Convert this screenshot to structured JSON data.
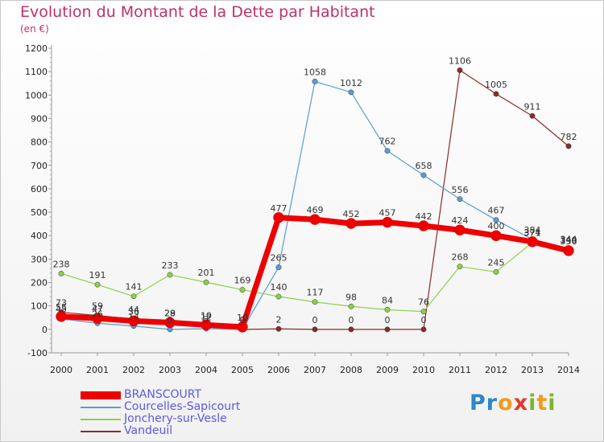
{
  "title": "Evolution du Montant de la Dette par Habitant",
  "subtitle": "(en €)",
  "brand": {
    "letters": [
      "P",
      "r",
      "o",
      "x",
      "i",
      "t",
      "i"
    ],
    "colors": [
      "#2f86c8",
      "#2f86c8",
      "#f39a1e",
      "#e13a2a",
      "#7bb52d",
      "#f39a1e",
      "#7bb52d"
    ]
  },
  "chart_data": {
    "type": "line",
    "x": [
      "2000",
      "2001",
      "2002",
      "2003",
      "2004",
      "2005",
      "2006",
      "2007",
      "2008",
      "2009",
      "2010",
      "2011",
      "2012",
      "2013",
      "2014"
    ],
    "ylim": [
      -100,
      1200
    ],
    "yticks": [
      "-100",
      "0",
      "100",
      "200",
      "300",
      "400",
      "500",
      "600",
      "700",
      "800",
      "900",
      "1000",
      "1100",
      "1200"
    ],
    "grid": false,
    "legend_position": "bottom-left",
    "series": [
      {
        "name": "BRANSCOURT",
        "color": "#ee0000",
        "values": [
          55,
          47,
          36,
          29,
          19,
          10,
          477,
          469,
          452,
          457,
          442,
          424,
          400,
          374,
          336
        ],
        "labels": [
          "55",
          "47",
          "36",
          "29",
          "19",
          "10",
          "477",
          "469",
          "452",
          "457",
          "442",
          "424",
          "400",
          "374",
          "336"
        ]
      },
      {
        "name": "Courcelles-Sapicourt",
        "color": "#5b9bd5",
        "values": [
          45,
          26,
          14,
          0,
          3,
          0,
          265,
          1058,
          1012,
          762,
          658,
          556,
          467,
          384,
          344
        ],
        "labels": [
          "45",
          "26",
          "14",
          "0",
          "3",
          "0",
          "265",
          "1058",
          "1012",
          "762",
          "658",
          "556",
          "467",
          "384",
          "344"
        ]
      },
      {
        "name": "Jonchery-sur-Vesle",
        "color": "#8ed04a",
        "values": [
          238,
          191,
          141,
          233,
          201,
          169,
          140,
          117,
          98,
          84,
          76,
          268,
          245,
          371,
          340
        ],
        "labels": [
          "238",
          "191",
          "141",
          "233",
          "201",
          "169",
          "140",
          "117",
          "98",
          "84",
          "76",
          "268",
          "245",
          "371",
          "340"
        ]
      },
      {
        "name": "Vandeuil",
        "color": "#8b2b2b",
        "values": [
          73,
          59,
          44,
          28,
          12,
          0,
          2,
          0,
          0,
          0,
          0,
          1106,
          1005,
          911,
          782
        ],
        "labels": [
          "73",
          "59",
          "44",
          "28",
          "12",
          "0",
          "2",
          "0",
          "0",
          "0",
          "0",
          "1106",
          "1005",
          "911",
          "782"
        ]
      }
    ]
  }
}
